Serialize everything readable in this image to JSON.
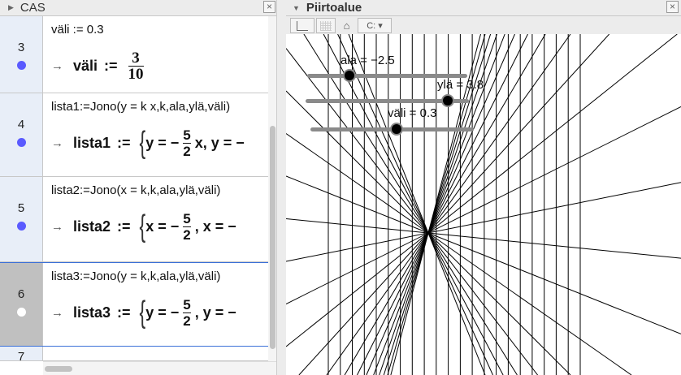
{
  "cas_panel": {
    "title": "CAS",
    "close": "×",
    "rows": [
      {
        "num": "3",
        "visible": true,
        "input": "väli := 0.3",
        "out_name": "väli",
        "assign": ":=",
        "frac_num": "3",
        "frac_den": "10",
        "expr_pre": "",
        "expr_post": "",
        "brace": ""
      },
      {
        "num": "4",
        "visible": true,
        "input": "lista1:=Jono(y = k x,k,ala,ylä,väli)",
        "out_name": "lista1",
        "assign": ":=",
        "brace": "{",
        "expr_pre": "y = −",
        "frac_num": "5",
        "frac_den": "2",
        "expr_post": "x, y = −"
      },
      {
        "num": "5",
        "visible": true,
        "input": "lista2:=Jono(x = k,k,ala,ylä,väli)",
        "out_name": "lista2",
        "assign": ":=",
        "brace": "{",
        "expr_pre": "x = −",
        "frac_num": "5",
        "frac_den": "2",
        "expr_post": ", x = −"
      },
      {
        "num": "6",
        "visible": false,
        "input": "lista3:=Jono(y = k,k,ala,ylä,väli)",
        "out_name": "lista3",
        "assign": ":=",
        "brace": "{",
        "expr_pre": "y = −",
        "frac_num": "5",
        "frac_den": "2",
        "expr_post": ", y = −"
      },
      {
        "num": "7"
      }
    ],
    "arrow": "→"
  },
  "graphics_panel": {
    "title": "Piirtoalue",
    "close": "×",
    "toolbar": {
      "axes": "axes-icon",
      "grid": "grid-icon",
      "home": "⌂",
      "style": "C: ▾"
    },
    "sliders": [
      {
        "label": "ala = −2.5",
        "value": -2.5
      },
      {
        "label": "ylä = 3.8",
        "value": 3.8
      },
      {
        "label": "väli = 0.3",
        "value": 0.3
      }
    ]
  },
  "chart_data": {
    "type": "line",
    "k_start": -2.5,
    "k_end": 3.8,
    "k_step": 0.3,
    "families": [
      "y = k x",
      "x = k"
    ],
    "hidden_families": [
      "y = k"
    ]
  },
  "colors": {
    "visible_dot": "#5a5aff",
    "selected_row": "#c0c0c0",
    "row_border": "#3a6fd8"
  }
}
